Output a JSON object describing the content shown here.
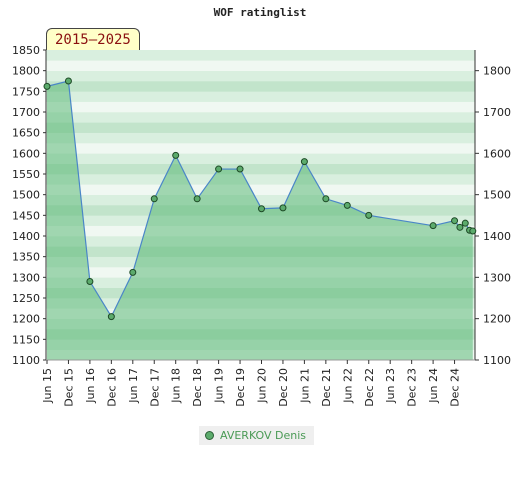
{
  "chart_data": {
    "type": "area",
    "title": "WOF ratinglist",
    "badge": "2015–2025",
    "xlabel": "",
    "ylabel": "",
    "x_ticks": [
      "Jun 15",
      "Dec 15",
      "Jun 16",
      "Dec 16",
      "Jun 17",
      "Dec 17",
      "Jun 18",
      "Dec 18",
      "Jun 19",
      "Dec 19",
      "Jun 20",
      "Dec 20",
      "Jun 21",
      "Dec 21",
      "Jun 22",
      "Dec 22",
      "Jun 23",
      "Dec 23",
      "Jun 24",
      "Dec 24"
    ],
    "y_ticks_left": [
      1100,
      1150,
      1200,
      1250,
      1300,
      1350,
      1400,
      1450,
      1500,
      1550,
      1600,
      1650,
      1700,
      1750,
      1800,
      1850
    ],
    "y_ticks_right": [
      1100,
      1200,
      1300,
      1400,
      1500,
      1600,
      1700,
      1800
    ],
    "ylim": [
      1100,
      1850
    ],
    "grid": false,
    "legend_position": "bottom-center",
    "colors": {
      "line": "#4a86c8",
      "marker_fill": "#5cab6c",
      "marker_stroke": "#1d4a26",
      "area_fill": "#5fb97a",
      "legend_text": "#4a9a55"
    },
    "series": [
      {
        "name": "AVERKOV Denis",
        "x": [
          0,
          1,
          2,
          3,
          4,
          5,
          6,
          7,
          8,
          9,
          10,
          11,
          12,
          13,
          14,
          15,
          18,
          19,
          19.25,
          19.5,
          19.7,
          19.85
        ],
        "values": [
          1762,
          1775,
          1290,
          1205,
          1312,
          1490,
          1595,
          1490,
          1562,
          1562,
          1466,
          1468,
          1580,
          1490,
          1474,
          1450,
          1425,
          1437,
          1421,
          1431,
          1414,
          1412
        ]
      }
    ]
  }
}
